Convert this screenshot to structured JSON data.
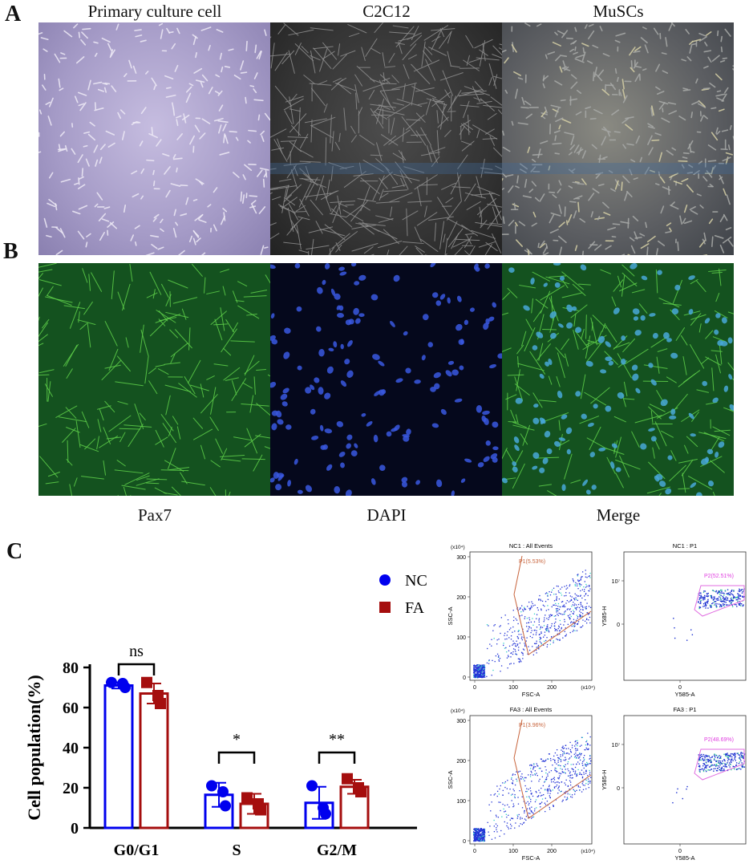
{
  "panels": {
    "a": {
      "label": "A",
      "images": [
        {
          "title": "Primary culture cell"
        },
        {
          "title": "C2C12"
        },
        {
          "title": "MuSCs"
        }
      ]
    },
    "b": {
      "label": "B",
      "images": [
        {
          "caption": "Pax7"
        },
        {
          "caption": "DAPI"
        },
        {
          "caption": "Merge"
        }
      ]
    },
    "c": {
      "label": "C"
    }
  },
  "chart_data": [
    {
      "type": "bar",
      "ylabel": "Cell population(%)",
      "ylim": [
        0,
        80
      ],
      "yticks": [
        0,
        20,
        40,
        60,
        80
      ],
      "categories": [
        "G0/G1",
        "S",
        "G2/M"
      ],
      "series": [
        {
          "name": "NC",
          "color": "#0000ee",
          "marker": "circle",
          "values": [
            71,
            16.5,
            12.5
          ],
          "errors": [
            1.5,
            6,
            8
          ],
          "points": [
            [
              72.5,
              72,
              70
            ],
            [
              21,
              18,
              11
            ],
            [
              21,
              10,
              7
            ]
          ]
        },
        {
          "name": "FA",
          "color": "#a50e0e",
          "marker": "square",
          "values": [
            67,
            12,
            20.5
          ],
          "errors": [
            5,
            5,
            3.5
          ],
          "points": [
            [
              72.5,
              66,
              62
            ],
            [
              15,
              12,
              9
            ],
            [
              24.5,
              20,
              18
            ]
          ]
        }
      ],
      "significance": [
        "ns",
        "*",
        "**"
      ]
    },
    {
      "type": "scatter",
      "panels": [
        {
          "title": "NC1 : All Events",
          "gate": "P1(5.53%)",
          "xlabel": "FSC-A",
          "ylabel": "SSC-A",
          "xticks": [
            "0",
            "100",
            "200"
          ],
          "yticks": [
            "0",
            "100",
            "200",
            "300"
          ],
          "xunit": "(x10⁴)",
          "yunit": "(x10⁴)"
        },
        {
          "title": "NC1 : P1",
          "gate": "P2(52.51%)",
          "xlabel": "Y585-A",
          "ylabel": "Y585-H",
          "xticks": [
            "0"
          ],
          "yticks": [
            "0",
            "10⁷"
          ]
        },
        {
          "title": "FA3 : All Events",
          "gate": "P1(3.96%)",
          "xlabel": "FSC-A",
          "ylabel": "SSC-A",
          "xticks": [
            "0",
            "100",
            "200"
          ],
          "yticks": [
            "0",
            "100",
            "200",
            "300"
          ],
          "xunit": "(x10⁴)",
          "yunit": "(x10⁴)"
        },
        {
          "title": "FA3 : P1",
          "gate": "P2(48.69%)",
          "xlabel": "Y585-A",
          "ylabel": "Y585-H",
          "xticks": [
            "0"
          ],
          "yticks": [
            "0",
            "10⁷"
          ]
        }
      ]
    }
  ]
}
